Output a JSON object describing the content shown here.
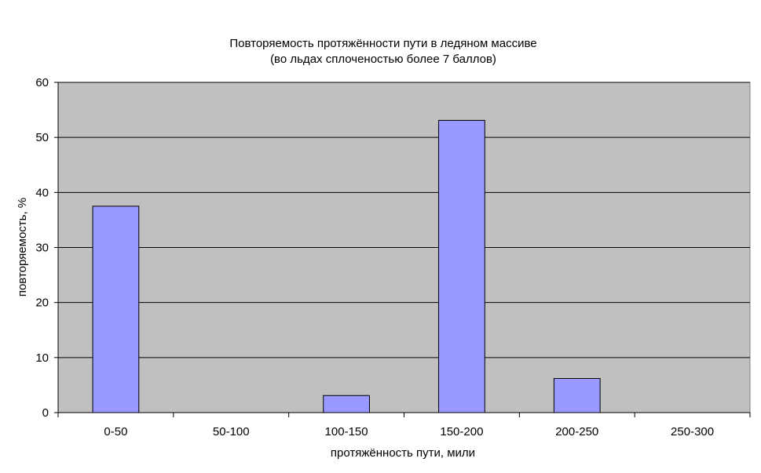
{
  "chart_data": {
    "type": "bar",
    "title": "Повторяемость протяжённости пути в ледяном массиве",
    "subtitle": "(во льдах сплоченостью более 7 баллов)",
    "xlabel": "протяжённость пути, мили",
    "ylabel": "повторяемость, %",
    "categories": [
      "0-50",
      "50-100",
      "100-150",
      "150-200",
      "200-250",
      "250-300"
    ],
    "values": [
      37.5,
      0,
      3.1,
      53.1,
      6.2,
      0
    ],
    "ylim": [
      0,
      60
    ],
    "yticks": [
      0,
      10,
      20,
      30,
      40,
      50,
      60
    ],
    "grid": true,
    "legend": "none",
    "colors": {
      "bar_fill": "#9999ff",
      "bar_stroke": "#000000",
      "plot_background": "#c0c0c0",
      "grid": "#000000"
    }
  }
}
